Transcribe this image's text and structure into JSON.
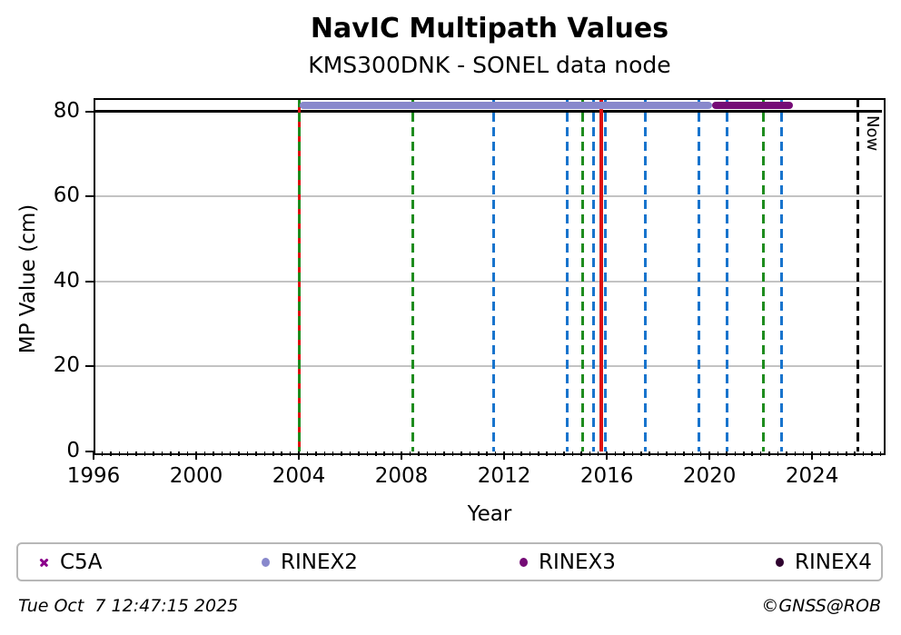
{
  "header": {
    "title": "NavIC Multipath Values",
    "subtitle": "KMS300DNK - SONEL data node"
  },
  "footer": {
    "timestamp": "Tue Oct  7 12:47:15 2025",
    "copyright": "©GNSS@ROB"
  },
  "colors": {
    "c5a": "#8B008B",
    "rinex2": "#8888CC",
    "rinex3": "#750B76",
    "rinex4": "#2F032F",
    "event_green": "#1E8C1E",
    "event_blue": "#1874CD",
    "event_red": "#DD1111",
    "now_line": "#000000",
    "grid": "#C3C3C3",
    "hline": "#000000"
  },
  "chart_data": {
    "type": "scatter",
    "title": "NavIC Multipath Values",
    "subtitle": "KMS300DNK - SONEL data node",
    "xlabel": "Year",
    "ylabel": "MP Value (cm)",
    "x_range": [
      1996,
      2026.72
    ],
    "y_range": [
      0,
      83.2
    ],
    "x_ticks": [
      1996,
      2000,
      2004,
      2008,
      2012,
      2016,
      2020,
      2024
    ],
    "x_minor_step_years": 0.3333333,
    "y_ticks": [
      0,
      20,
      40,
      60,
      80
    ],
    "grid": "horizontal-only",
    "legend_position": "bottom",
    "hline": {
      "y": 80,
      "color": "#000000"
    },
    "series": [
      {
        "name": "C5A",
        "marker": "x",
        "color": "#8B008B",
        "segments": []
      },
      {
        "name": "RINEX2",
        "marker": "dot",
        "color": "#8888CC",
        "segments": [
          {
            "x_start": 2004.03,
            "x_end": 2020.1,
            "y": 81.5
          }
        ]
      },
      {
        "name": "RINEX3",
        "marker": "dot",
        "color": "#750B76",
        "segments": [
          {
            "x_start": 2020.1,
            "x_end": 2023.25,
            "y": 81.5
          }
        ]
      },
      {
        "name": "RINEX4",
        "marker": "dot",
        "color": "#2F032F",
        "segments": []
      }
    ],
    "event_lines": [
      {
        "x": 2004.03,
        "dash": "dashed",
        "color": "#1E8C1E",
        "overlay_color": "#DD1111"
      },
      {
        "x": 2008.45,
        "dash": "dashed",
        "color": "#1E8C1E"
      },
      {
        "x": 2011.6,
        "dash": "dashed",
        "color": "#1874CD"
      },
      {
        "x": 2014.45,
        "dash": "dashed",
        "color": "#1874CD"
      },
      {
        "x": 2015.05,
        "dash": "dashed",
        "color": "#1E8C1E"
      },
      {
        "x": 2015.5,
        "dash": "dashed",
        "color": "#1874CD"
      },
      {
        "x": 2015.8,
        "dash": "solid",
        "color": "#DD1111"
      },
      {
        "x": 2015.95,
        "dash": "dashed",
        "color": "#1874CD"
      },
      {
        "x": 2017.5,
        "dash": "dashed",
        "color": "#1874CD"
      },
      {
        "x": 2019.6,
        "dash": "dashed",
        "color": "#1874CD"
      },
      {
        "x": 2020.7,
        "dash": "dashed",
        "color": "#1874CD"
      },
      {
        "x": 2022.1,
        "dash": "dashed",
        "color": "#1E8C1E"
      },
      {
        "x": 2022.8,
        "dash": "dashed",
        "color": "#1874CD"
      }
    ],
    "now_line": {
      "x": 2025.77,
      "dash": "dashed",
      "color": "#000000",
      "label": "Now"
    }
  },
  "legend": {
    "items": [
      {
        "label": "C5A",
        "marker": "x",
        "color": "#8B008B"
      },
      {
        "label": "RINEX2",
        "marker": "dot",
        "color": "#8888CC"
      },
      {
        "label": "RINEX3",
        "marker": "dot",
        "color": "#750B76"
      },
      {
        "label": "RINEX4",
        "marker": "dot",
        "color": "#2F032F"
      }
    ]
  }
}
